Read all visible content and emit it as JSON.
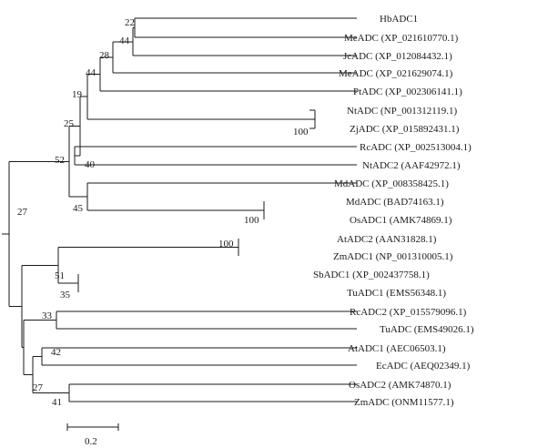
{
  "tree": {
    "taxa": [
      "HbADC1",
      "MeADC (XP_021610770.1)",
      "JcADC (XP_012084432.1)",
      "MeADC (XP_021629074.1)",
      "PtADC (XP_002306141.1)",
      "NtADC (NP_001312119.1)",
      "ZjADC (XP_015892431.1)",
      "RcADC (XP_002513004.1)",
      "NtADC2 (AAF42972.1)",
      "MdADC (XP_008358425.1)",
      "MdADC (BAD74163.1)",
      "OsADC1 (AMK74869.1)",
      "AtADC2 (AAN31828.1)",
      "ZmADC1 (NP_001310005.1)",
      "SbADC1 (XP_002437758.1)",
      "TuADC1 (EMS56348.1)",
      "RcADC2 (XP_015579096.1)",
      "TuADC (EMS49026.1)",
      "AtADC1 (AEC06503.1)",
      "EcADC (AEQ02349.1)",
      "OsADC2 (AMK74870.1)",
      "ZmADC (ONM11577.1)"
    ],
    "support_values": [
      "22",
      "44",
      "28",
      "44",
      "19",
      "100",
      "25",
      "40",
      "52",
      "45",
      "100",
      "27",
      "100",
      "51",
      "35",
      "33",
      "42",
      "27",
      "41"
    ],
    "scale_bar": {
      "label": "0.2"
    }
  },
  "colors": {
    "line": "#1a1a1a",
    "text": "#1a1a1a",
    "background": "#ffffff"
  }
}
